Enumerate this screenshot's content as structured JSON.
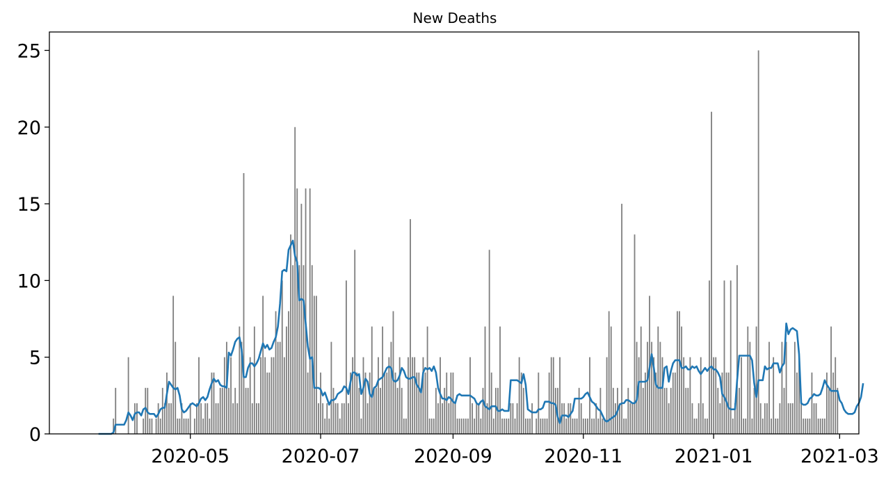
{
  "chart_data": {
    "type": "bar",
    "title": "New Deaths",
    "xlabel": "",
    "ylabel": "",
    "x_axis": {
      "type": "date",
      "range": [
        "2020-02-25",
        "2021-03-10"
      ],
      "ticks": [
        "2020-05-01",
        "2020-07-01",
        "2020-09-01",
        "2020-11-01",
        "2021-01-01",
        "2021-03-01"
      ],
      "tick_labels": [
        "2020-05",
        "2020-07",
        "2020-09",
        "2020-11",
        "2021-01",
        "2021-03"
      ]
    },
    "y_axis": {
      "range": [
        0,
        26.2
      ],
      "ticks": [
        0,
        5,
        10,
        15,
        20,
        25
      ],
      "tick_labels": [
        "0",
        "5",
        "10",
        "15",
        "20",
        "25"
      ]
    },
    "grid": false,
    "legend": "none",
    "colors": {
      "bars": "#808080",
      "line": "#1f77b4",
      "frame": "#000000"
    },
    "series": [
      {
        "type": "bar",
        "start_date": "2020-03-26",
        "values": [
          1,
          3,
          0,
          0,
          0,
          0,
          0,
          5,
          0,
          0,
          2,
          2,
          0,
          0,
          1,
          3,
          3,
          1,
          1,
          0,
          1,
          2,
          1,
          3,
          2,
          4,
          2,
          2,
          9,
          6,
          1,
          1,
          2,
          1,
          1,
          1,
          2,
          0,
          1,
          2,
          5,
          2,
          1,
          2,
          2,
          1,
          4,
          4,
          2,
          2,
          3,
          3,
          5,
          6,
          3,
          5,
          2,
          3,
          2,
          7,
          6,
          17,
          3,
          3,
          5,
          2,
          7,
          2,
          2,
          5,
          9,
          5,
          4,
          4,
          5,
          5,
          8,
          6,
          6,
          10,
          5,
          7,
          8,
          13,
          11,
          20,
          16,
          11,
          15,
          11,
          16,
          4,
          16,
          11,
          9,
          9,
          2,
          4,
          2,
          1,
          2,
          1,
          6,
          3,
          2,
          2,
          1,
          2,
          2,
          10,
          2,
          4,
          5,
          12,
          4,
          3,
          1,
          5,
          4,
          2,
          4,
          7,
          3,
          3,
          5,
          3,
          7,
          4,
          4,
          5,
          6,
          8,
          4,
          3,
          5,
          3,
          1,
          1,
          5,
          14,
          5,
          5,
          4,
          4,
          3,
          5,
          4,
          7,
          1,
          1,
          1,
          3,
          2,
          5,
          2,
          3,
          4,
          2,
          4,
          4,
          2,
          1,
          1,
          1,
          1,
          1,
          1,
          5,
          2,
          1,
          2,
          2,
          1,
          3,
          7,
          2,
          12,
          4,
          1,
          3,
          3,
          7,
          1,
          1,
          1,
          1,
          2,
          2,
          1,
          2,
          5,
          4,
          3,
          1,
          1,
          1,
          2,
          0,
          1,
          4,
          1,
          1,
          1,
          1,
          4,
          5,
          5,
          3,
          3,
          5,
          2,
          2,
          1,
          2,
          2,
          1,
          1,
          1,
          3,
          2,
          1,
          1,
          1,
          5,
          1,
          1,
          2,
          1,
          3,
          1,
          1,
          5,
          8,
          7,
          3,
          2,
          3,
          2,
          15,
          1,
          1,
          3,
          2,
          2,
          13,
          6,
          5,
          7,
          3,
          4,
          6,
          9,
          6,
          5,
          4,
          7,
          6,
          5,
          3,
          3,
          2,
          3,
          4,
          4,
          8,
          8,
          7,
          5,
          3,
          3,
          5,
          2,
          1,
          1,
          2,
          5,
          2,
          1,
          1,
          10,
          21,
          5,
          5,
          3,
          2,
          4,
          10,
          4,
          4,
          10,
          1,
          2,
          11,
          3,
          5,
          1,
          1,
          7,
          6,
          1,
          3,
          7,
          25,
          2,
          1,
          2,
          2,
          6,
          1,
          5,
          1,
          1,
          2,
          6,
          3,
          6,
          2,
          2,
          2,
          6,
          4,
          5,
          2,
          1,
          1,
          1,
          1,
          4,
          2,
          2,
          1,
          1,
          1,
          1,
          4,
          3,
          7,
          4,
          5,
          3
        ]
      },
      {
        "type": "line",
        "name": "",
        "start_date": "2020-03-19",
        "values": [
          0,
          0,
          0,
          0,
          0,
          0,
          0,
          0.1,
          0.6,
          0.6,
          0.6,
          0.6,
          0.6,
          0.9,
          1.4,
          1.2,
          0.9,
          1.3,
          1.4,
          1.4,
          1.2,
          1.6,
          1.7,
          1.4,
          1.3,
          1.3,
          1.3,
          1.1,
          1.3,
          1.6,
          1.7,
          1.7,
          2.6,
          3.4,
          3.2,
          3,
          2.9,
          3,
          2.5,
          1.6,
          1.4,
          1.5,
          1.7,
          1.9,
          2,
          1.9,
          1.8,
          2,
          2.3,
          2.4,
          2.2,
          2.4,
          2.9,
          3.3,
          3.6,
          3.4,
          3.5,
          3.2,
          3.1,
          3.1,
          3,
          5.3,
          5.1,
          5.5,
          6,
          6.2,
          6.3,
          5.5,
          3.7,
          3.7,
          4.3,
          4.6,
          4.6,
          4.4,
          4.6,
          4.9,
          5.4,
          5.9,
          5.6,
          5.8,
          5.5,
          5.6,
          6,
          6.3,
          7,
          8.5,
          10.6,
          10.7,
          10.6,
          12,
          12.3,
          12.6,
          11.6,
          11.2,
          8.7,
          8.8,
          8.7,
          7.2,
          5.7,
          4.9,
          5,
          3,
          3,
          3,
          2.9,
          2.5,
          2.7,
          2.3,
          1.9,
          2.2,
          2.2,
          2.3,
          2.6,
          2.7,
          2.8,
          3.1,
          3,
          2.6,
          3.4,
          4,
          4,
          3.8,
          3.9,
          2.6,
          3,
          3.6,
          3.4,
          2.6,
          2.4,
          3,
          3.1,
          3.5,
          3.6,
          3.7,
          4,
          4.3,
          4.4,
          4.3,
          3.5,
          3.4,
          3.5,
          3.8,
          4.3,
          4.1,
          3.7,
          3.6,
          3.6,
          3.7,
          3.7,
          3.2,
          3,
          2.7,
          4,
          4.3,
          4.2,
          4.3,
          4.1,
          4.4,
          4,
          3,
          2.6,
          2.3,
          2.3,
          2.2,
          2.4,
          2.3,
          2.1,
          2,
          2.5,
          2.6,
          2.5,
          2.5,
          2.5,
          2.5,
          2.5,
          2.4,
          2.3,
          2,
          1.9,
          2.1,
          2.2,
          1.8,
          1.7,
          1.6,
          1.8,
          1.8,
          1.8,
          1.5,
          1.5,
          1.6,
          1.5,
          1.5,
          1.5,
          3.5,
          3.5,
          3.5,
          3.5,
          3.4,
          3.3,
          3.9,
          3.2,
          1.6,
          1.5,
          1.4,
          1.4,
          1.4,
          1.6,
          1.6,
          1.7,
          2.1,
          2.1,
          2.1,
          2,
          2,
          1.9,
          1.1,
          0.7,
          1.2,
          1.2,
          1.2,
          1.1,
          1.3,
          1.5,
          2.3,
          2.3,
          2.3,
          2.3,
          2.4,
          2.6,
          2.7,
          2.4,
          2.1,
          2,
          1.8,
          1.6,
          1.5,
          1.2,
          0.9,
          0.8,
          0.9,
          1,
          1.1,
          1.2,
          1.5,
          1.9,
          2,
          2,
          2.2,
          2.2,
          2.1,
          2,
          2,
          2.2,
          3.4,
          3.4,
          3.4,
          3.4,
          3.5,
          4.3,
          5.2,
          4.3,
          3.2,
          3,
          3,
          3,
          4.3,
          4.4,
          3.4,
          4.1,
          4.6,
          4.8,
          4.8,
          4.8,
          4.3,
          4.3,
          4.4,
          4.2,
          4.2,
          4.4,
          4.3,
          4.4,
          4.1,
          3.9,
          4.1,
          4.3,
          4.1,
          4.3,
          4.4,
          4.2,
          4.2,
          4,
          3.7,
          2.6,
          2.4,
          2.1,
          1.7,
          1.6,
          1.6,
          1.6,
          3.5,
          5.1,
          5.1,
          5.1,
          5.1,
          5.1,
          5.1,
          4.8,
          3.3,
          2.4,
          3.5,
          3.5,
          3.5,
          4.4,
          4.2,
          4.3,
          4.3,
          4.6,
          4.6,
          4.6,
          4,
          4.4,
          4.6,
          7.2,
          6.5,
          6.8,
          6.9,
          6.8,
          6.7,
          5.2,
          2,
          1.9,
          1.9,
          2,
          2.3,
          2.4,
          2.6,
          2.5,
          2.5,
          2.6,
          3,
          3.5,
          3.2,
          3,
          2.8,
          2.8,
          2.8,
          2.8,
          2.2,
          2,
          1.6,
          1.4,
          1.3,
          1.3,
          1.3,
          1.4,
          1.8,
          2,
          2.4,
          3.3
        ]
      }
    ]
  }
}
